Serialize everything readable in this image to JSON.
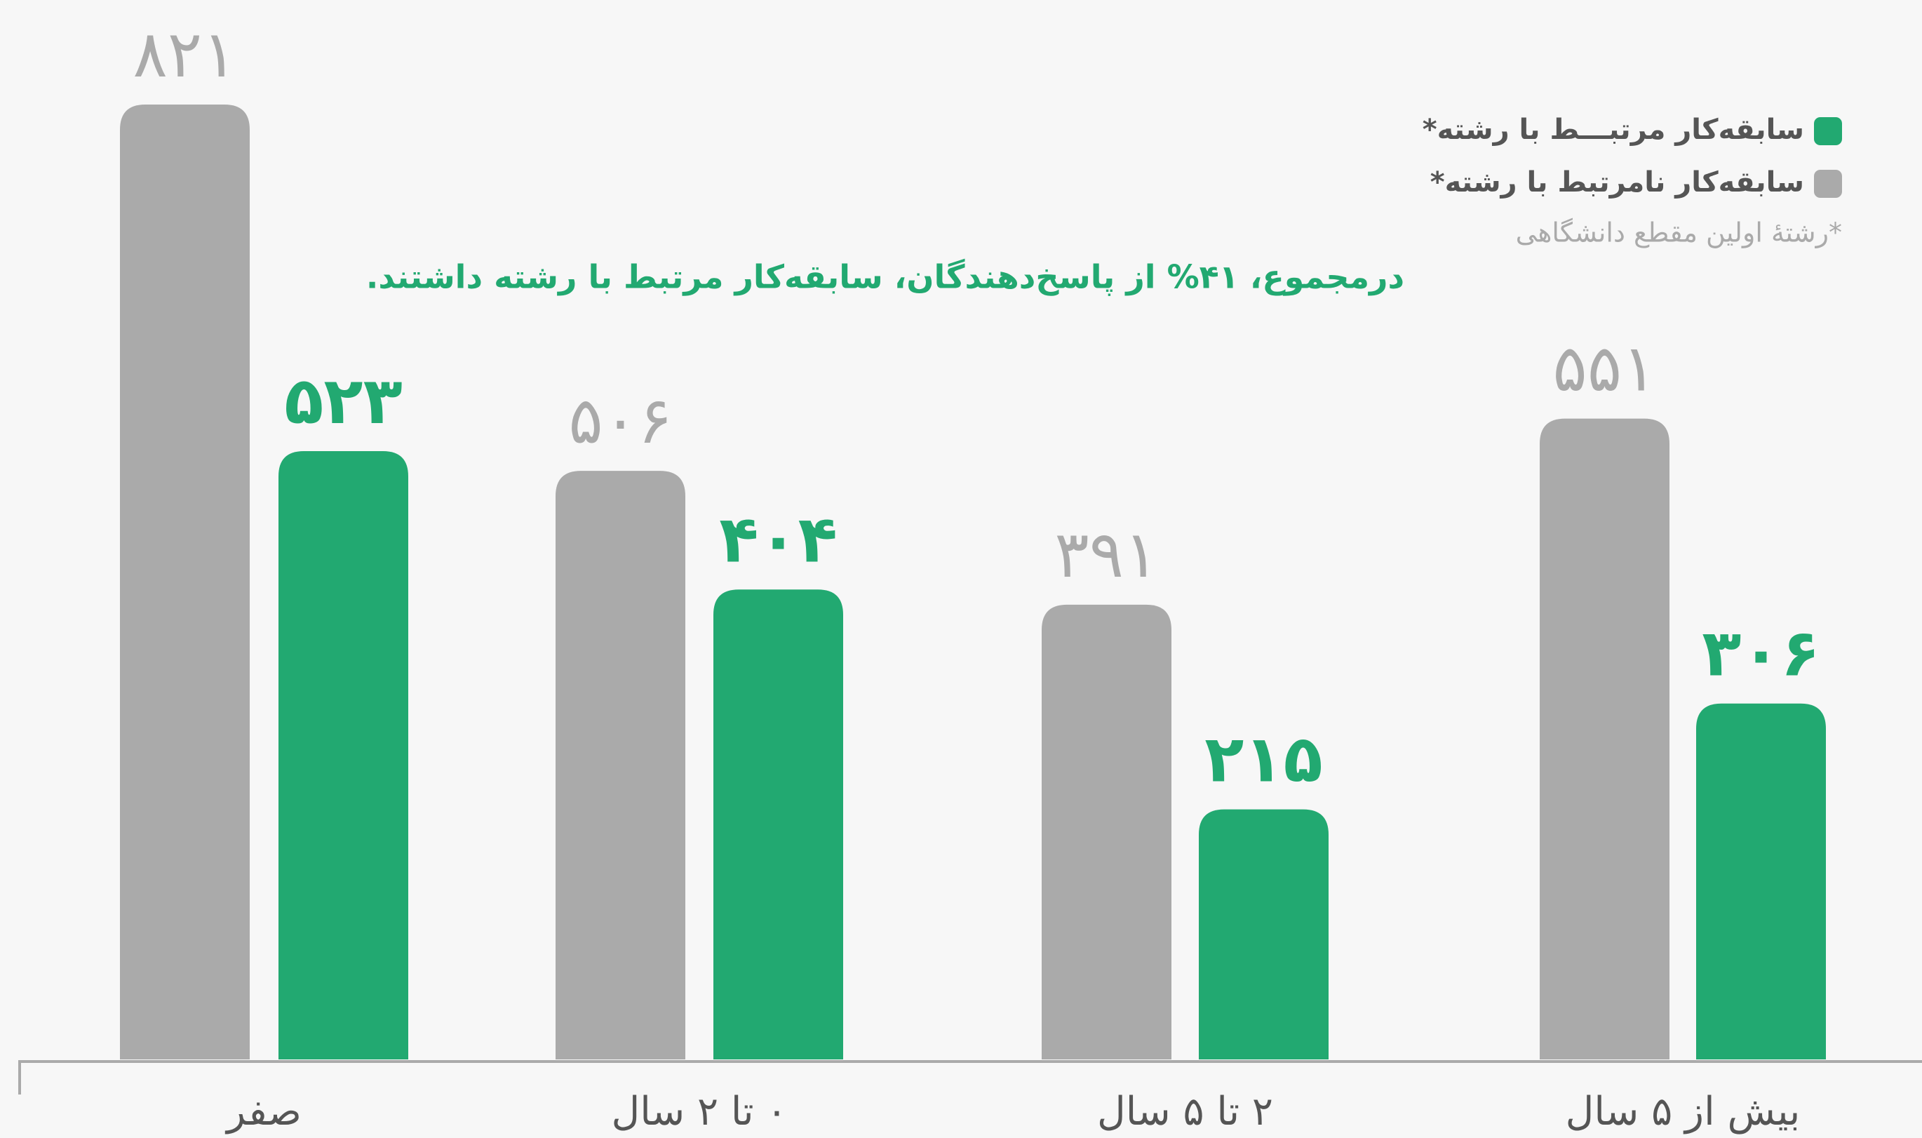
{
  "chart_data": {
    "type": "bar",
    "annotation": "درمجموع، ۴۱% از پاسخ‌دهندگان، سابقه‌کار مرتبط با رشته داشتند.",
    "footnote": "*رشتۀ اولین مقطع دانشگاهی",
    "categories": [
      "صفر",
      "۰ تا ۲ سال",
      "۲ تا ۵ سال",
      "بیش از ۵ سال"
    ],
    "series": [
      {
        "name": "سابقه‌کار نامرتبط با رشته*",
        "color": "#aaaaaa",
        "values": [
          821,
          506,
          391,
          551
        ],
        "value_labels": [
          "۸۲۱",
          "۵۰۶",
          "۳۹۱",
          "۵۵۱"
        ]
      },
      {
        "name": "سابقه‌کار مرتبـــط با رشته*",
        "color": "#22a971",
        "values": [
          523,
          404,
          215,
          306
        ],
        "value_labels": [
          "۵۲۳",
          "۴۰۴",
          "۲۱۵",
          "۳۰۶"
        ]
      }
    ],
    "legend": "top-right"
  }
}
